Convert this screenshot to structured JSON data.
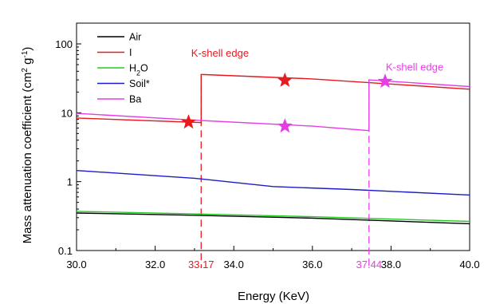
{
  "chart_data": {
    "type": "line",
    "xlabel": "Energy (KeV)",
    "ylabel_main": "Mass attenuation coefficient (cm",
    "ylabel_sup1": "2",
    "ylabel_mid": " g",
    "ylabel_sup2": "-1",
    "ylabel_end": ")",
    "xlim": [
      30,
      40
    ],
    "ylim": [
      0.1,
      200
    ],
    "yscale": "log",
    "x_ticks": [
      "30.0",
      "32.0",
      "34.0",
      "36.0",
      "38.0",
      "40.0"
    ],
    "x_tick_values": [
      30,
      32,
      34,
      36,
      38,
      40
    ],
    "y_ticks": [
      "0.1",
      "1",
      "10",
      "100"
    ],
    "y_tick_values": [
      0.1,
      1,
      10,
      100
    ],
    "legend": {
      "placement": "top-left",
      "entries": [
        {
          "label": "Air",
          "color": "#000000"
        },
        {
          "label": "I",
          "color": "#e8191f"
        },
        {
          "label_pre": "H",
          "label_sub": "2",
          "label_post": "O",
          "color": "#22cc22"
        },
        {
          "label": "Soil*",
          "color": "#1c1cc8"
        },
        {
          "label": "Ba",
          "color": "#e63ee6"
        }
      ]
    },
    "series": [
      {
        "name": "Air",
        "color": "#000000",
        "points": [
          [
            30,
            0.35
          ],
          [
            33,
            0.325
          ],
          [
            36,
            0.295
          ],
          [
            40,
            0.245
          ]
        ]
      },
      {
        "name": "I",
        "color": "#e8191f",
        "points": [
          [
            30,
            8.4
          ],
          [
            33.17,
            7.2
          ],
          [
            33.17,
            36
          ],
          [
            36,
            31
          ],
          [
            40,
            22
          ]
        ]
      },
      {
        "name": "H2O",
        "color": "#22cc22",
        "points": [
          [
            30,
            0.37
          ],
          [
            33,
            0.34
          ],
          [
            36,
            0.31
          ],
          [
            40,
            0.265
          ]
        ]
      },
      {
        "name": "Soil*",
        "color": "#1c1cc8",
        "points": [
          [
            30,
            1.45
          ],
          [
            33,
            1.12
          ],
          [
            35,
            0.85
          ],
          [
            37,
            0.77
          ],
          [
            40,
            0.64
          ]
        ]
      },
      {
        "name": "Ba",
        "color": "#e63ee6",
        "points": [
          [
            30,
            9.8
          ],
          [
            33,
            7.8
          ],
          [
            36,
            6.4
          ],
          [
            37.44,
            5.5
          ],
          [
            37.44,
            30
          ],
          [
            40,
            24
          ]
        ]
      }
    ],
    "edges": [
      {
        "x": 33.17,
        "label": "33.17",
        "color": "#e8191f",
        "y_top": 36
      },
      {
        "x": 37.44,
        "label": "37.44",
        "color": "#e63ee6",
        "y_top": 30
      }
    ],
    "annotations": [
      {
        "text": "K-shell edge",
        "color": "#e8191f",
        "x": 33.65,
        "y": 65
      },
      {
        "text": "K-shell edge",
        "color": "#e63ee6",
        "x": 38.6,
        "y": 41
      }
    ],
    "stars": [
      {
        "x": 32.85,
        "y": 7.3,
        "color": "#e8191f"
      },
      {
        "x": 35.3,
        "y": 29.5,
        "color": "#e8191f"
      },
      {
        "x": 35.3,
        "y": 6.4,
        "color": "#e63ee6"
      },
      {
        "x": 37.85,
        "y": 28.5,
        "color": "#e63ee6"
      }
    ]
  }
}
